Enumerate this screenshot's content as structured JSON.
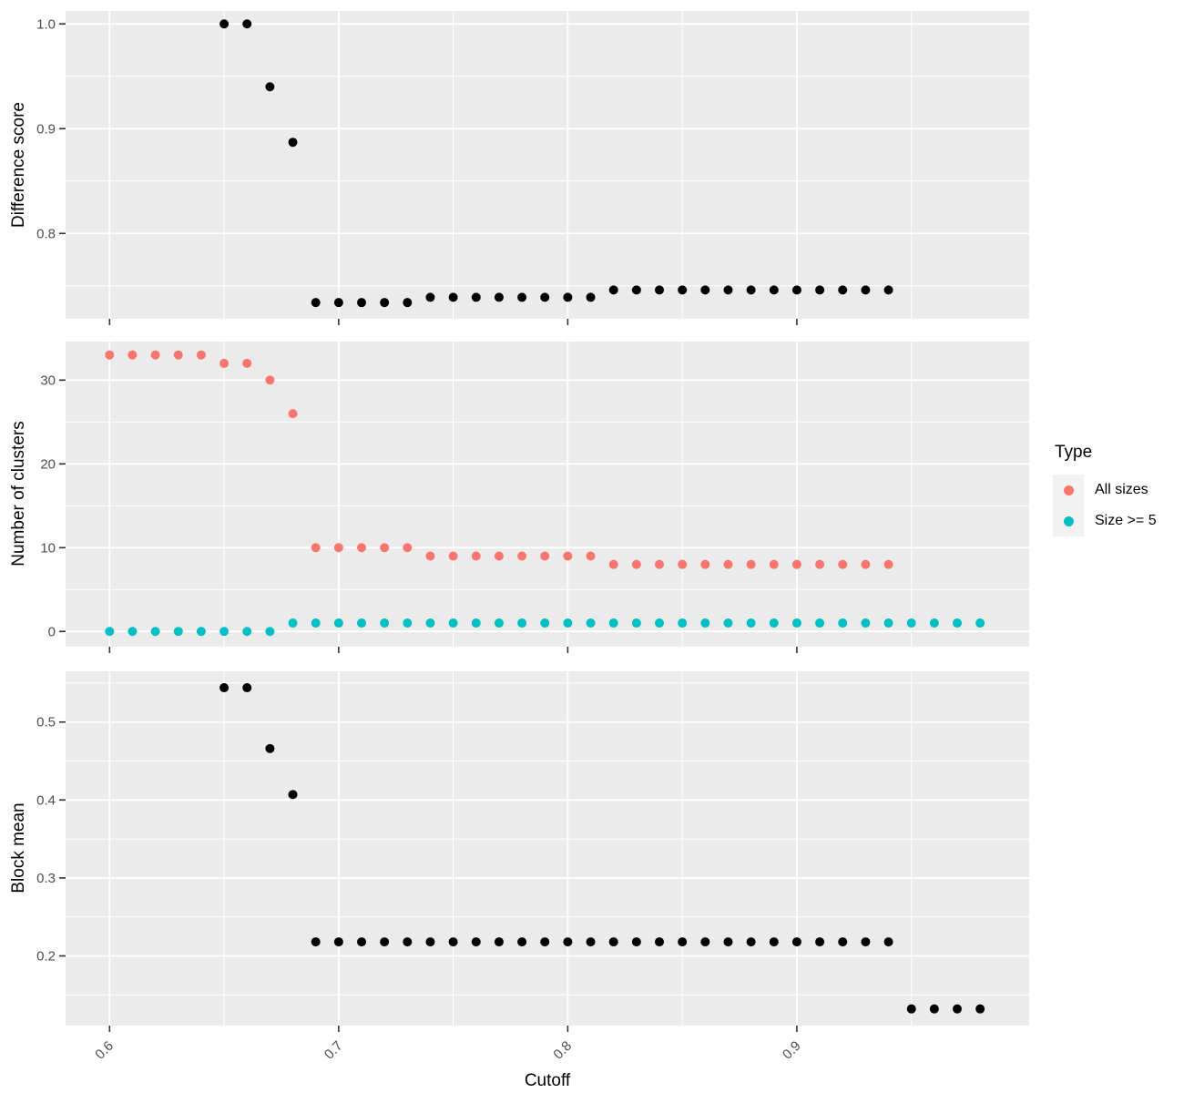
{
  "figure": {
    "xlabel": "Cutoff",
    "x_range": [
      0.5808,
      1.0014
    ],
    "x_ticks": [
      0.6,
      0.7,
      0.8,
      0.9
    ],
    "x_tick_labels": [
      "0.6",
      "0.7",
      "0.8",
      "0.9"
    ],
    "x_minor": [
      0.65,
      0.75,
      0.85,
      0.95
    ],
    "panel_bg": "#EBEBEB",
    "grid_color": "#FFFFFF",
    "tick_mark_color": "#333333",
    "tick_label_color": "#4D4D4D",
    "point_color_default": "#000000"
  },
  "legend": {
    "title": "Type",
    "key_bg": "#F2F2F2",
    "items": [
      {
        "label": "All sizes",
        "color": "#F8766D"
      },
      {
        "label": "Size >= 5",
        "color": "#00BFC4"
      }
    ]
  },
  "chart_data": [
    {
      "type": "scatter",
      "ylabel": "Difference score",
      "ylim": [
        0.7185,
        1.0124
      ],
      "y_ticks": [
        0.8,
        0.9,
        1.0
      ],
      "y_tick_labels": [
        "0.8",
        "0.9",
        "1.0"
      ],
      "y_minor": [
        0.75,
        0.85,
        0.95
      ],
      "series": [
        {
          "name": "Difference score",
          "color": "#000000",
          "points": [
            [
              0.65,
              1
            ],
            [
              0.66,
              1
            ],
            [
              0.67,
              0.94
            ],
            [
              0.68,
              0.887
            ],
            [
              0.69,
              0.734
            ],
            [
              0.7,
              0.734
            ],
            [
              0.71,
              0.734
            ],
            [
              0.72,
              0.734
            ],
            [
              0.73,
              0.734
            ],
            [
              0.74,
              0.739
            ],
            [
              0.75,
              0.739
            ],
            [
              0.76,
              0.739
            ],
            [
              0.77,
              0.739
            ],
            [
              0.78,
              0.739
            ],
            [
              0.79,
              0.739
            ],
            [
              0.8,
              0.739
            ],
            [
              0.81,
              0.739
            ],
            [
              0.82,
              0.746
            ],
            [
              0.83,
              0.746
            ],
            [
              0.84,
              0.746
            ],
            [
              0.85,
              0.746
            ],
            [
              0.86,
              0.746
            ],
            [
              0.87,
              0.746
            ],
            [
              0.88,
              0.746
            ],
            [
              0.89,
              0.746
            ],
            [
              0.9,
              0.746
            ],
            [
              0.91,
              0.746
            ],
            [
              0.92,
              0.746
            ],
            [
              0.93,
              0.746
            ],
            [
              0.94,
              0.746
            ]
          ]
        }
      ]
    },
    {
      "type": "scatter",
      "ylabel": "Number of clusters",
      "ylim": [
        -1.82,
        34.6
      ],
      "y_ticks": [
        0,
        10,
        20,
        30
      ],
      "y_tick_labels": [
        "0",
        "10",
        "20",
        "30"
      ],
      "y_minor": [
        5,
        15,
        25
      ],
      "series": [
        {
          "name": "All sizes",
          "color": "#F8766D",
          "points": [
            [
              0.6,
              33
            ],
            [
              0.61,
              33
            ],
            [
              0.62,
              33
            ],
            [
              0.63,
              33
            ],
            [
              0.64,
              33
            ],
            [
              0.65,
              32
            ],
            [
              0.66,
              32
            ],
            [
              0.67,
              30
            ],
            [
              0.68,
              26
            ],
            [
              0.69,
              10
            ],
            [
              0.7,
              10
            ],
            [
              0.71,
              10
            ],
            [
              0.72,
              10
            ],
            [
              0.73,
              10
            ],
            [
              0.74,
              9
            ],
            [
              0.75,
              9
            ],
            [
              0.76,
              9
            ],
            [
              0.77,
              9
            ],
            [
              0.78,
              9
            ],
            [
              0.79,
              9
            ],
            [
              0.8,
              9
            ],
            [
              0.81,
              9
            ],
            [
              0.82,
              8
            ],
            [
              0.83,
              8
            ],
            [
              0.84,
              8
            ],
            [
              0.85,
              8
            ],
            [
              0.86,
              8
            ],
            [
              0.87,
              8
            ],
            [
              0.88,
              8
            ],
            [
              0.89,
              8
            ],
            [
              0.9,
              8
            ],
            [
              0.91,
              8
            ],
            [
              0.92,
              8
            ],
            [
              0.93,
              8
            ],
            [
              0.94,
              8
            ]
          ]
        },
        {
          "name": "Size >= 5",
          "color": "#00BFC4",
          "points": [
            [
              0.6,
              0
            ],
            [
              0.61,
              0
            ],
            [
              0.62,
              0
            ],
            [
              0.63,
              0
            ],
            [
              0.64,
              0
            ],
            [
              0.65,
              0
            ],
            [
              0.66,
              0
            ],
            [
              0.67,
              0
            ],
            [
              0.68,
              1
            ],
            [
              0.69,
              1
            ],
            [
              0.7,
              1
            ],
            [
              0.71,
              1
            ],
            [
              0.72,
              1
            ],
            [
              0.73,
              1
            ],
            [
              0.74,
              1
            ],
            [
              0.75,
              1
            ],
            [
              0.76,
              1
            ],
            [
              0.77,
              1
            ],
            [
              0.78,
              1
            ],
            [
              0.79,
              1
            ],
            [
              0.8,
              1
            ],
            [
              0.81,
              1
            ],
            [
              0.82,
              1
            ],
            [
              0.83,
              1
            ],
            [
              0.84,
              1
            ],
            [
              0.85,
              1
            ],
            [
              0.86,
              1
            ],
            [
              0.87,
              1
            ],
            [
              0.88,
              1
            ],
            [
              0.89,
              1
            ],
            [
              0.9,
              1
            ],
            [
              0.91,
              1
            ],
            [
              0.92,
              1
            ],
            [
              0.93,
              1
            ],
            [
              0.94,
              1
            ],
            [
              0.95,
              1
            ],
            [
              0.96,
              1
            ],
            [
              0.97,
              1
            ],
            [
              0.98,
              1
            ]
          ]
        }
      ]
    },
    {
      "type": "scatter",
      "ylabel": "Block mean",
      "ylim": [
        0.1106,
        0.5651
      ],
      "y_ticks": [
        0.2,
        0.3,
        0.4,
        0.5
      ],
      "y_tick_labels": [
        "0.2",
        "0.3",
        "0.4",
        "0.5"
      ],
      "y_minor": [
        0.15,
        0.25,
        0.35,
        0.45,
        0.55
      ],
      "series": [
        {
          "name": "Block mean",
          "color": "#000000",
          "points": [
            [
              0.65,
              0.544
            ],
            [
              0.66,
              0.544
            ],
            [
              0.67,
              0.466
            ],
            [
              0.68,
              0.407
            ],
            [
              0.69,
              0.218
            ],
            [
              0.7,
              0.218
            ],
            [
              0.71,
              0.218
            ],
            [
              0.72,
              0.218
            ],
            [
              0.73,
              0.218
            ],
            [
              0.74,
              0.218
            ],
            [
              0.75,
              0.218
            ],
            [
              0.76,
              0.218
            ],
            [
              0.77,
              0.218
            ],
            [
              0.78,
              0.218
            ],
            [
              0.79,
              0.218
            ],
            [
              0.8,
              0.218
            ],
            [
              0.81,
              0.218
            ],
            [
              0.82,
              0.218
            ],
            [
              0.83,
              0.218
            ],
            [
              0.84,
              0.218
            ],
            [
              0.85,
              0.218
            ],
            [
              0.86,
              0.218
            ],
            [
              0.87,
              0.218
            ],
            [
              0.88,
              0.218
            ],
            [
              0.89,
              0.218
            ],
            [
              0.9,
              0.218
            ],
            [
              0.91,
              0.218
            ],
            [
              0.92,
              0.218
            ],
            [
              0.93,
              0.218
            ],
            [
              0.94,
              0.218
            ],
            [
              0.95,
              0.132
            ],
            [
              0.96,
              0.132
            ],
            [
              0.97,
              0.132
            ],
            [
              0.98,
              0.132
            ]
          ]
        }
      ]
    }
  ]
}
